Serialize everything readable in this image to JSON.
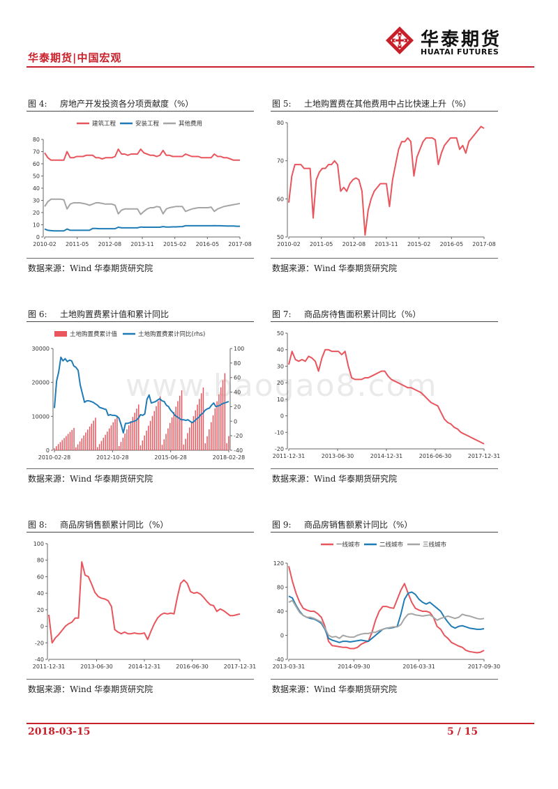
{
  "header": {
    "left_label": "华泰期货|中国宏观",
    "logo_cn": "华泰期货",
    "logo_en": "HUATAI FUTURES"
  },
  "footer": {
    "date": "2018-03-15",
    "page": "5 / 15"
  },
  "watermark": "www.baogao8.com",
  "colors": {
    "red": "#e8555c",
    "blue": "#1f7bb6",
    "gray": "#a5a5a5",
    "brand": "#c8202a"
  },
  "figures": [
    {
      "num": "图 4:",
      "title": "房地产开发投资各分项贡献度（%）",
      "source": "数据来源：Wind  华泰期货研究院"
    },
    {
      "num": "图 5:",
      "title": "土地购置费在其他费用中占比快速上升（%）",
      "source": "数据来源：Wind  华泰期货研究院"
    },
    {
      "num": "图 6:",
      "title": "土地购置费累计值和累计同比",
      "source": "数据来源：Wind  华泰期货研究院"
    },
    {
      "num": "图 7:",
      "title": "商品房待售面积累计同比（%）",
      "source": "数据来源：Wind  华泰期货研究院"
    },
    {
      "num": "图 8:",
      "title": "商品房销售额累计同比（%）",
      "source": "数据来源：Wind  华泰期货研究院"
    },
    {
      "num": "图 9:",
      "title": "商品房销售额累计同比（%）",
      "source": "数据来源：Wind  华泰期货研究院"
    }
  ],
  "chart_data": [
    {
      "type": "line",
      "title": "房地产开发投资各分项贡献度（%）",
      "ylim": [
        0,
        80
      ],
      "yticks": [
        0,
        10,
        20,
        30,
        40,
        50,
        60,
        70,
        80
      ],
      "xticks": [
        "2010-02",
        "2011-05",
        "2012-08",
        "2013-11",
        "2015-02",
        "2016-05",
        "2017-08"
      ],
      "legend": "top",
      "series": [
        {
          "name": "建筑工程",
          "color": "#e8555c",
          "values": [
            69,
            65,
            63,
            63,
            63,
            63,
            63,
            70,
            65,
            65,
            66,
            66,
            66,
            67,
            67,
            67,
            65,
            65,
            64,
            65,
            65,
            65,
            66,
            72,
            68,
            68,
            67,
            68,
            68,
            68,
            72,
            69,
            68,
            67,
            67,
            66,
            67,
            71,
            67,
            67,
            66,
            66,
            66,
            66,
            68,
            67,
            66,
            66,
            66,
            65,
            65,
            65,
            65,
            68,
            66,
            66,
            65,
            65,
            64,
            63,
            63,
            63
          ]
        },
        {
          "name": "安装工程",
          "color": "#1f7bb6",
          "values": [
            6.5,
            5.5,
            5.2,
            5,
            5,
            5,
            5,
            6.5,
            5.5,
            5.5,
            5.5,
            5.5,
            5.5,
            5.5,
            5.5,
            7,
            7,
            6.8,
            6.8,
            6.8,
            6.8,
            6.8,
            6.8,
            8,
            7.5,
            7.5,
            7.5,
            7.5,
            7.5,
            7.5,
            8.2,
            8,
            8,
            8,
            8,
            8,
            8,
            8.5,
            8.2,
            8.2,
            8.3,
            8.3,
            8.4,
            8.5,
            9.2,
            9.2,
            9.2,
            9.2,
            9.2,
            9.2,
            9.2,
            9.2,
            9.2,
            9.3,
            9.2,
            9.2,
            9.1,
            9,
            9,
            9,
            8.8,
            8.8
          ]
        },
        {
          "name": "其他费用",
          "color": "#a5a5a5",
          "values": [
            25,
            29,
            31,
            31,
            31,
            31,
            30.5,
            23,
            27,
            28,
            28,
            28,
            27.5,
            27,
            26,
            27,
            28,
            28,
            27.5,
            27,
            27,
            27,
            26,
            19,
            22,
            23,
            23,
            23,
            23,
            23,
            18.5,
            21,
            23,
            24,
            24,
            25,
            24.5,
            19,
            23,
            24,
            24.5,
            25,
            25,
            25,
            21,
            22,
            23,
            23.5,
            24,
            24,
            24,
            24,
            24.5,
            21,
            23,
            24,
            25,
            25.5,
            26,
            26.5,
            27,
            27.5
          ]
        }
      ]
    },
    {
      "type": "line",
      "title": "土地购置费在其他费用中占比快速上升（%）",
      "ylim": [
        50,
        80
      ],
      "yticks": [
        50,
        60,
        70,
        80
      ],
      "xticks": [
        "2010-02",
        "2011-05",
        "2012-08",
        "2013-11",
        "2015-02",
        "2016-05",
        "2017-08"
      ],
      "series": [
        {
          "name": "土地购置费占比",
          "color": "#e8555c",
          "values": [
            59,
            66,
            69,
            69,
            69,
            68,
            68,
            68,
            55,
            65,
            67,
            68,
            68,
            69,
            69,
            70,
            69,
            62,
            63,
            62,
            64,
            65,
            65.5,
            65,
            62,
            50.5,
            57,
            60,
            62,
            63,
            64,
            64,
            64,
            58,
            65,
            69,
            73,
            75,
            75,
            76,
            75,
            66,
            71,
            73,
            75,
            76,
            76,
            76,
            75.5,
            69,
            72,
            74,
            75,
            76,
            76,
            76,
            73,
            74,
            72,
            75,
            76,
            77,
            78,
            79,
            78.5
          ]
        }
      ]
    },
    {
      "type": "bar+line",
      "title": "土地购置费累计值和累计同比",
      "ylim": [
        0,
        30000
      ],
      "yticks": [
        0,
        10000,
        20000,
        30000
      ],
      "y2lim": [
        -40,
        100
      ],
      "y2ticks": [
        -40,
        -20,
        0,
        20,
        40,
        60,
        80,
        100
      ],
      "xticks": [
        "2010-02-28",
        "2012-10-28",
        "2015-06-28",
        "2018-02-28"
      ],
      "legend": "top",
      "series": [
        {
          "name": "土地购置费累计值",
          "color": "#e8555c",
          "kind": "bar",
          "yearly_peaks": [
            6600,
            9600,
            10100,
            13500,
            15900,
            17700,
            18500,
            22700,
            23000
          ]
        },
        {
          "name": "土地购置费累计同比(rhs)",
          "color": "#1f7bb6",
          "kind": "line",
          "values": [
            18,
            55,
            68,
            88,
            83,
            86,
            82,
            84,
            83,
            76,
            74,
            70,
            50,
            38,
            26,
            28,
            28,
            27,
            26,
            24,
            22,
            19,
            18,
            17,
            16,
            8,
            9,
            8,
            8,
            7,
            4,
            -5,
            -16,
            -3,
            -3,
            -2,
            -1,
            0,
            1,
            4,
            9,
            8,
            10,
            30,
            36,
            25,
            26,
            27,
            29,
            31,
            28,
            27,
            22,
            20,
            15,
            12,
            8,
            6,
            4,
            2,
            2,
            1,
            2,
            0,
            -2,
            0,
            3,
            5,
            9,
            11,
            15,
            17,
            18,
            22,
            25,
            20,
            21,
            22,
            24,
            25,
            26,
            27
          ]
        }
      ]
    },
    {
      "type": "line",
      "title": "商品房待售面积累计同比（%）",
      "ylim": [
        -20,
        50
      ],
      "yticks": [
        -20,
        -10,
        0,
        10,
        20,
        30,
        40,
        50
      ],
      "xticks": [
        "2011-12-31",
        "2013-06-30",
        "2014-12-31",
        "2016-06-30",
        "2017-12-31"
      ],
      "series": [
        {
          "name": "商品房待售面积累计同比",
          "color": "#e8555c",
          "values": [
            31,
            39,
            34,
            33,
            34,
            33,
            36,
            35,
            33,
            27,
            35,
            40,
            40,
            39,
            39,
            39,
            37,
            39,
            30,
            23,
            22,
            22,
            22,
            23,
            23,
            24,
            25,
            26,
            27,
            27,
            24,
            22,
            21,
            20,
            19,
            18,
            17,
            17,
            16,
            15,
            14,
            12,
            10,
            8,
            7,
            6,
            2,
            -2,
            -4,
            -5,
            -7,
            -8,
            -10,
            -11,
            -12,
            -13,
            -14,
            -15,
            -16,
            -17
          ]
        }
      ]
    },
    {
      "type": "line",
      "title": "商品房销售额累计同比（%）",
      "ylim": [
        -40,
        100
      ],
      "yticks": [
        -40,
        -20,
        0,
        20,
        40,
        60,
        80,
        100
      ],
      "xticks": [
        "2011-12-31",
        "2013-06-30",
        "2014-12-31",
        "2016-06-30",
        "2017-12-31"
      ],
      "series": [
        {
          "name": "商品房销售额累计同比",
          "color": "#e8555c",
          "values": [
            14,
            -20,
            -14,
            -10,
            -5,
            0,
            3,
            5,
            10,
            10,
            78,
            62,
            60,
            51,
            41,
            36,
            34,
            33,
            31,
            24,
            -4,
            -7,
            -9,
            -7,
            -9,
            -9,
            -8,
            -9,
            -9,
            -8,
            -16,
            -6,
            3,
            10,
            14,
            16,
            15,
            16,
            15,
            35,
            52,
            56,
            52,
            42,
            40,
            41,
            39,
            35,
            30,
            26,
            25,
            18,
            21,
            19,
            16,
            13,
            13,
            14,
            15
          ]
        }
      ]
    },
    {
      "type": "line",
      "title": "商品房销售额累计同比（%）",
      "ylim": [
        -40,
        120
      ],
      "yticks": [
        -40,
        0,
        40,
        80,
        120
      ],
      "xticks": [
        "2013-03-31",
        "2014-09-30",
        "2016-03-31",
        "2017-09-30"
      ],
      "legend": "top",
      "series": [
        {
          "name": "一线城市",
          "color": "#e8555c",
          "values": [
            115,
            90,
            70,
            55,
            45,
            42,
            40,
            40,
            36,
            30,
            15,
            -10,
            -17,
            -18,
            -19,
            -20,
            -20,
            -22,
            -22,
            -20,
            -15,
            -12,
            -10,
            5,
            25,
            40,
            48,
            48,
            46,
            45,
            60,
            75,
            86,
            70,
            55,
            45,
            42,
            40,
            40,
            38,
            30,
            15,
            10,
            0,
            -5,
            -12,
            -15,
            -18,
            -20,
            -25,
            -27,
            -28,
            -29,
            -28,
            -25
          ]
        },
        {
          "name": "二线城市",
          "color": "#1f7bb6",
          "values": [
            65,
            62,
            50,
            40,
            33,
            30,
            28,
            27,
            24,
            20,
            10,
            -5,
            -8,
            -10,
            -12,
            -10,
            -10,
            -11,
            -10,
            -9,
            -8,
            -9,
            -10,
            -5,
            0,
            5,
            10,
            12,
            12,
            13,
            15,
            35,
            60,
            70,
            72,
            68,
            60,
            55,
            52,
            55,
            50,
            45,
            40,
            30,
            22,
            15,
            12,
            15,
            16,
            14,
            12,
            11,
            10,
            10,
            11
          ]
        },
        {
          "name": "三线城市",
          "color": "#a5a5a5",
          "values": [
            55,
            58,
            48,
            38,
            33,
            30,
            30,
            28,
            25,
            22,
            12,
            0,
            -3,
            -2,
            -5,
            0,
            -2,
            -3,
            -3,
            0,
            2,
            3,
            3,
            5,
            5,
            8,
            10,
            12,
            13,
            14,
            14,
            18,
            28,
            35,
            36,
            34,
            33,
            32,
            33,
            34,
            30,
            25,
            28,
            30,
            32,
            30,
            28,
            30,
            35,
            33,
            32,
            30,
            28,
            27,
            28
          ]
        }
      ]
    }
  ]
}
